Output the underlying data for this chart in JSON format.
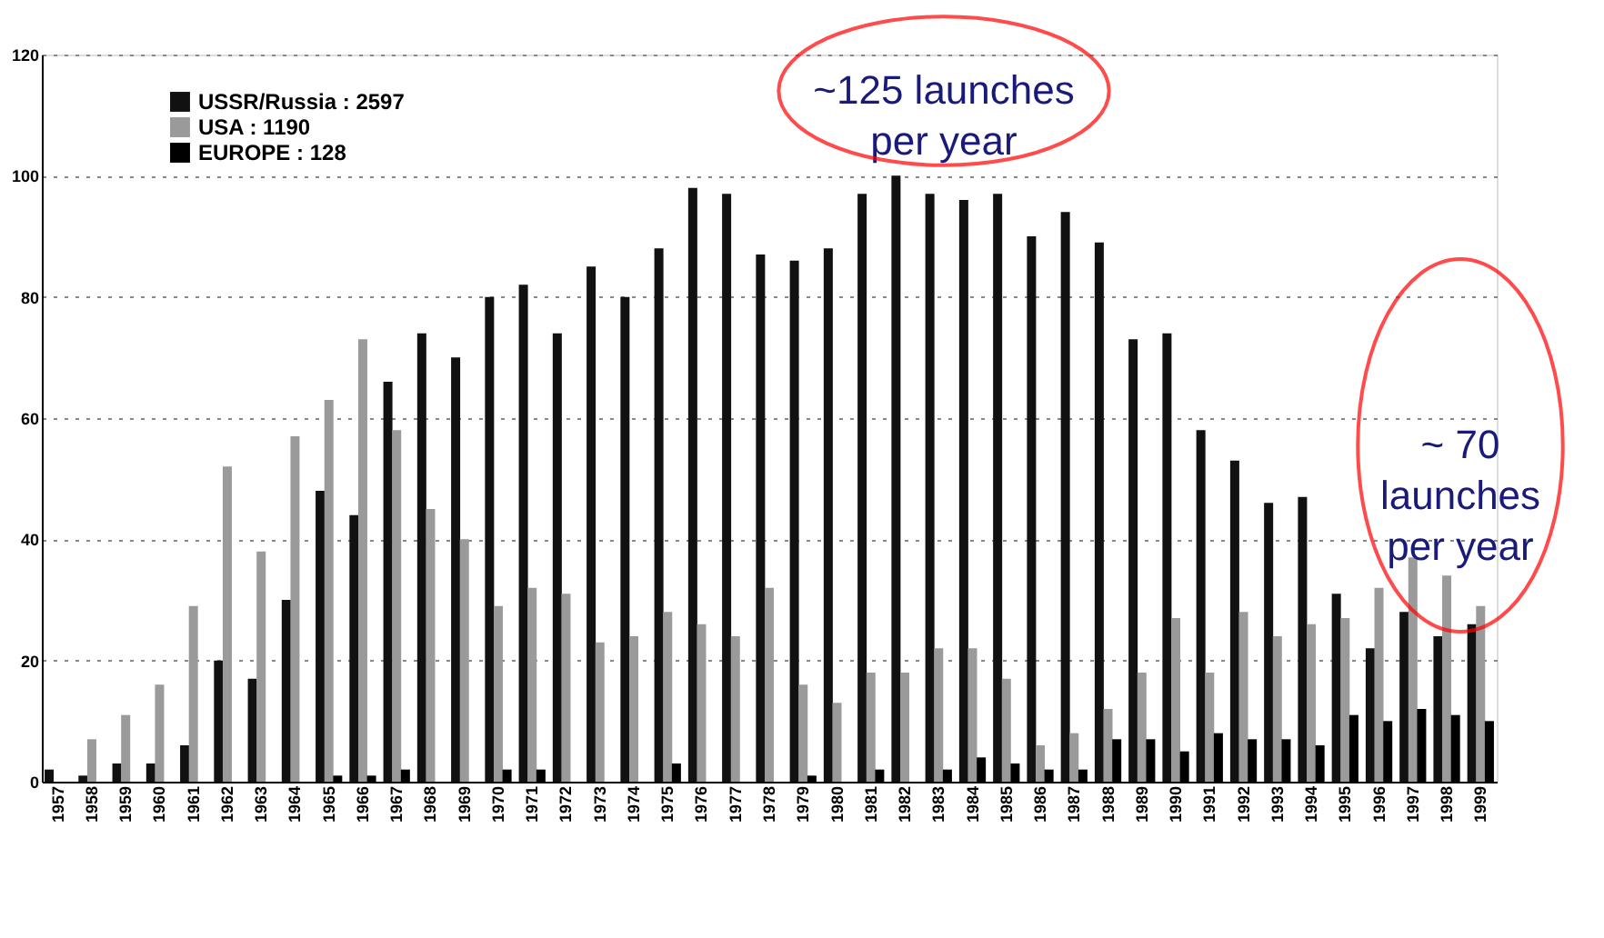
{
  "chart_data": {
    "type": "bar",
    "categories": [
      "1957",
      "1958",
      "1959",
      "1960",
      "1961",
      "1962",
      "1963",
      "1964",
      "1965",
      "1966",
      "1967",
      "1968",
      "1969",
      "1970",
      "1971",
      "1972",
      "1973",
      "1974",
      "1975",
      "1976",
      "1977",
      "1978",
      "1979",
      "1980",
      "1981",
      "1982",
      "1983",
      "1984",
      "1985",
      "1986",
      "1987",
      "1988",
      "1989",
      "1990",
      "1991",
      "1992",
      "1993",
      "1994",
      "1995",
      "1996",
      "1997",
      "1998",
      "1999"
    ],
    "series": [
      {
        "name": "USSR/Russia : 2597",
        "color": "#111111",
        "values": [
          2,
          1,
          3,
          3,
          6,
          20,
          17,
          30,
          48,
          44,
          66,
          74,
          70,
          80,
          82,
          74,
          85,
          80,
          88,
          98,
          97,
          87,
          86,
          88,
          97,
          100,
          97,
          96,
          97,
          90,
          94,
          89,
          73,
          74,
          58,
          53,
          46,
          47,
          31,
          22,
          28,
          24,
          26
        ]
      },
      {
        "name": "USA : 1190",
        "color": "#9a9a9a",
        "values": [
          0,
          7,
          11,
          16,
          29,
          52,
          38,
          57,
          63,
          73,
          58,
          45,
          40,
          29,
          32,
          31,
          23,
          24,
          28,
          26,
          24,
          32,
          16,
          13,
          18,
          18,
          22,
          22,
          17,
          6,
          8,
          12,
          18,
          27,
          18,
          28,
          24,
          26,
          27,
          32,
          37,
          34,
          29
        ]
      },
      {
        "name": "EUROPE : 128",
        "color": "#000000",
        "values": [
          0,
          0,
          0,
          0,
          0,
          0,
          0,
          0,
          1,
          1,
          2,
          0,
          0,
          2,
          2,
          0,
          0,
          0,
          3,
          0,
          0,
          0,
          1,
          0,
          2,
          0,
          2,
          4,
          3,
          2,
          2,
          7,
          7,
          5,
          8,
          7,
          7,
          6,
          11,
          10,
          12,
          11,
          10
        ]
      }
    ],
    "ylim": [
      0,
      120
    ],
    "yticks": [
      0,
      20,
      40,
      60,
      80,
      100,
      120
    ],
    "grid": "y",
    "legend": "top left",
    "annotations": [
      "~125 launches per year",
      "~ 70 launches per year"
    ]
  }
}
